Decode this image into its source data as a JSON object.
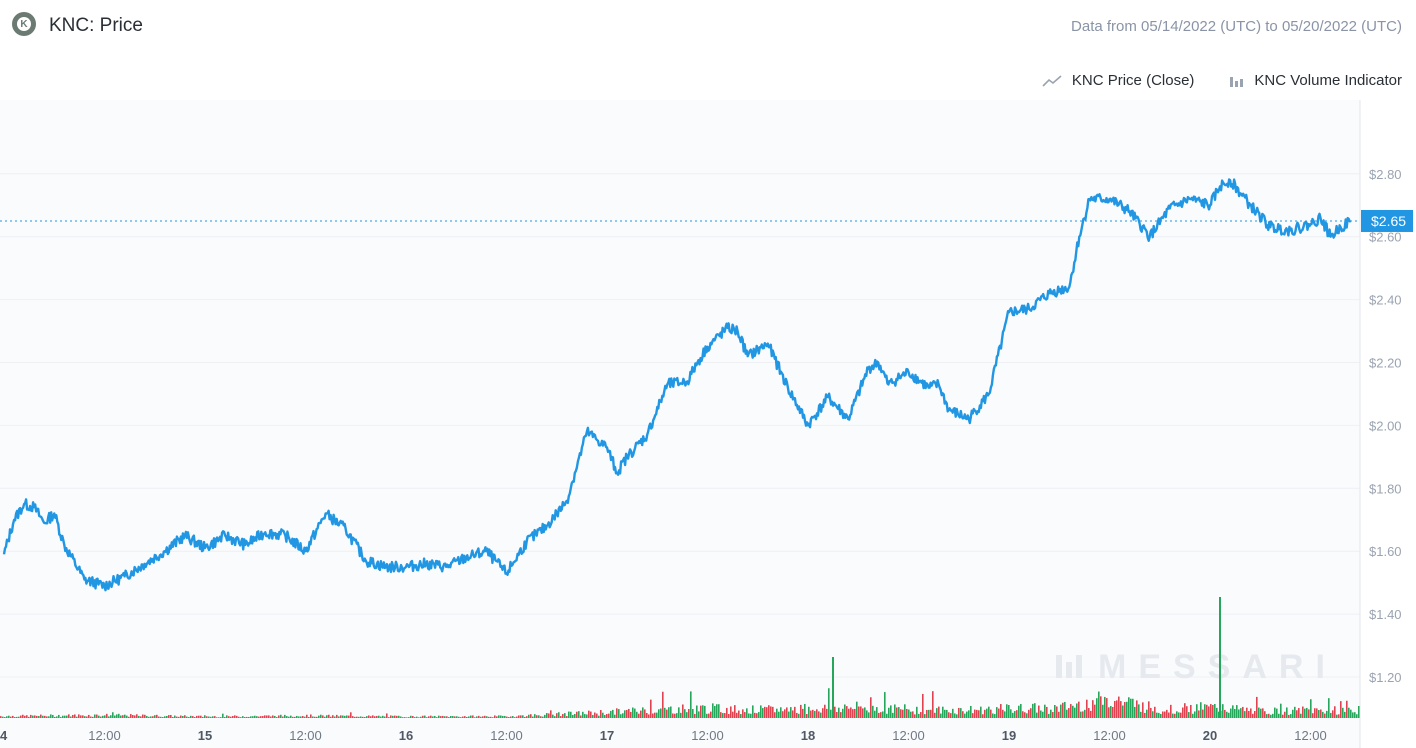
{
  "header": {
    "title": "KNC: Price",
    "logo_icon": "kyber-network-logo-icon",
    "date_range": "Data from 05/14/2022 (UTC) to 05/20/2022 (UTC)"
  },
  "legend": {
    "items": [
      {
        "label": "KNC Price (Close)",
        "icon": "line-chart-icon"
      },
      {
        "label": "KNC Volume Indicator",
        "icon": "bar-chart-icon"
      }
    ]
  },
  "watermark": "MESSARI",
  "colors": {
    "price_line": "#2196e3",
    "volume_up": "#26a65b",
    "volume_down": "#e0424f",
    "grid": "#eef0f4",
    "background": "#fafbfd",
    "current_badge": "#2196e3"
  },
  "chart_data": {
    "type": "line",
    "title": "KNC: Price",
    "xlabel": "",
    "ylabel": "",
    "x_range": [
      "05/14/2022",
      "05/20/2022"
    ],
    "x_ticks": [
      "4",
      "12:00",
      "15",
      "12:00",
      "16",
      "12:00",
      "17",
      "12:00",
      "18",
      "12:00",
      "19",
      "12:00",
      "20",
      "12:00"
    ],
    "y_ticks": [
      "$1.20",
      "$1.40",
      "$1.60",
      "$1.80",
      "$2.00",
      "$2.20",
      "$2.40",
      "$2.60",
      "$2.80"
    ],
    "ylim": [
      1.1,
      2.95
    ],
    "grid": true,
    "current_value": 2.65,
    "current_label": "$2.65",
    "series": [
      {
        "name": "KNC Price (Close)",
        "x": [
          0,
          0.05,
          0.1,
          0.15,
          0.2,
          0.25,
          0.3,
          0.4,
          0.5,
          0.6,
          0.7,
          0.8,
          0.9,
          1.0,
          1.1,
          1.2,
          1.3,
          1.4,
          1.5,
          1.6,
          1.7,
          1.8,
          1.9,
          2.0,
          2.1,
          2.2,
          2.3,
          2.4,
          2.5,
          2.6,
          2.7,
          2.75,
          2.8,
          2.9,
          3.0,
          3.05,
          3.1,
          3.2,
          3.3,
          3.4,
          3.45,
          3.5,
          3.6,
          3.65,
          3.7,
          3.8,
          3.9,
          4.0,
          4.1,
          4.2,
          4.3,
          4.35,
          4.4,
          4.5,
          4.6,
          4.65,
          4.7,
          4.8,
          4.9,
          5.0,
          5.1,
          5.2,
          5.3,
          5.35,
          5.4,
          5.5,
          5.6,
          5.7,
          5.8,
          5.9,
          6.0,
          6.05,
          6.1,
          6.2,
          6.3,
          6.4,
          6.5,
          6.55,
          6.6,
          6.65,
          6.7
        ],
        "values": [
          1.59,
          1.7,
          1.75,
          1.74,
          1.69,
          1.72,
          1.62,
          1.51,
          1.49,
          1.52,
          1.56,
          1.6,
          1.65,
          1.61,
          1.65,
          1.62,
          1.66,
          1.65,
          1.6,
          1.72,
          1.67,
          1.57,
          1.55,
          1.55,
          1.56,
          1.55,
          1.58,
          1.6,
          1.53,
          1.63,
          1.68,
          1.72,
          1.76,
          1.98,
          1.93,
          1.85,
          1.9,
          1.97,
          2.13,
          2.14,
          2.2,
          2.25,
          2.31,
          2.3,
          2.22,
          2.26,
          2.12,
          2.0,
          2.09,
          2.02,
          2.18,
          2.2,
          2.13,
          2.17,
          2.12,
          2.13,
          2.05,
          2.02,
          2.1,
          2.36,
          2.37,
          2.42,
          2.44,
          2.6,
          2.72,
          2.72,
          2.68,
          2.6,
          2.69,
          2.72,
          2.7,
          2.76,
          2.78,
          2.7,
          2.63,
          2.62,
          2.64,
          2.66,
          2.6,
          2.63,
          2.65
        ]
      },
      {
        "name": "KNC Volume Indicator",
        "type": "bar",
        "x": [
          0,
          0.5,
          1.0,
          1.5,
          2.0,
          2.5,
          3.0,
          3.25,
          3.5,
          3.75,
          4.0,
          4.25,
          4.5,
          4.75,
          5.0,
          5.25,
          5.5,
          5.75,
          6.0,
          6.25,
          6.5
        ],
        "values": [
          0.1,
          0.15,
          0.08,
          0.12,
          0.08,
          0.09,
          0.3,
          0.45,
          0.5,
          0.42,
          0.5,
          0.55,
          0.45,
          0.4,
          0.48,
          0.52,
          1.0,
          0.45,
          0.55,
          0.35,
          0.4
        ]
      }
    ]
  }
}
